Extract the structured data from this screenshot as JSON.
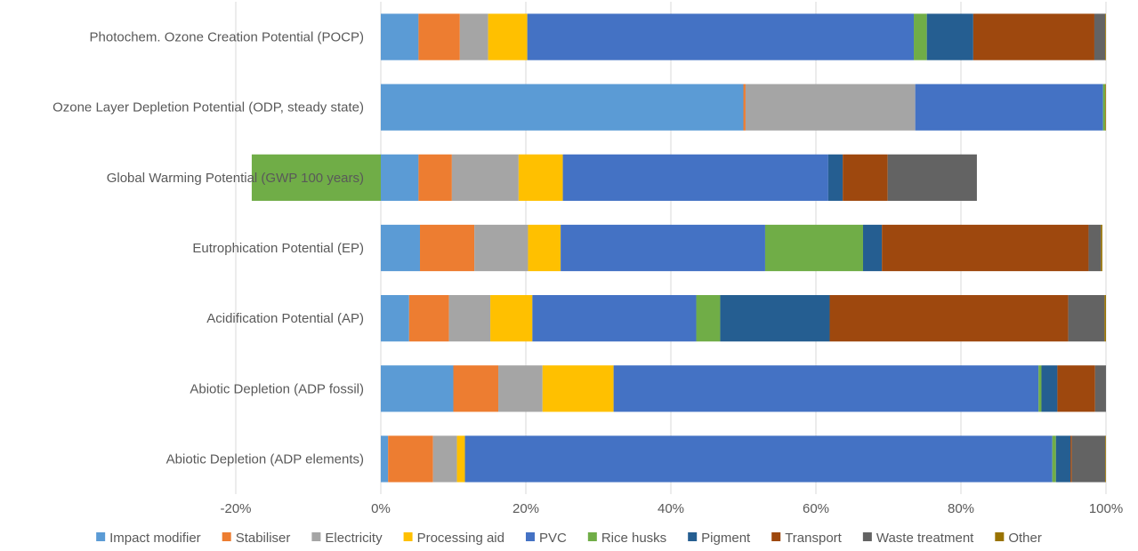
{
  "chart_data": {
    "type": "bar",
    "orientation": "horizontal",
    "stacked": true,
    "categories": [
      "Photochem. Ozone Creation Potential (POCP)",
      "Ozone Layer Depletion Potential (ODP, steady state)",
      "Global Warming Potential (GWP 100 years)",
      "Eutrophication Potential (EP)",
      "Acidification Potential (AP)",
      "Abiotic Depletion (ADP fossil)",
      "Abiotic Depletion (ADP elements)"
    ],
    "series": [
      {
        "name": "Impact modifier",
        "color": "#5B9BD5",
        "values": [
          5.2,
          50.0,
          5.2,
          5.4,
          3.9,
          10.0,
          1.0
        ]
      },
      {
        "name": "Stabiliser",
        "color": "#ED7D31",
        "values": [
          5.7,
          0.3,
          4.6,
          7.5,
          5.5,
          6.2,
          6.2
        ]
      },
      {
        "name": "Electricity",
        "color": "#A5A5A5",
        "values": [
          3.9,
          23.4,
          9.2,
          7.4,
          5.7,
          6.1,
          3.3
        ]
      },
      {
        "name": "Processing aid",
        "color": "#FFC000",
        "values": [
          5.4,
          0.0,
          6.1,
          4.5,
          5.8,
          9.8,
          1.1
        ]
      },
      {
        "name": "PVC",
        "color": "#4472C4",
        "values": [
          53.3,
          25.9,
          36.6,
          28.2,
          22.6,
          58.6,
          81.0
        ]
      },
      {
        "name": "Rice husks",
        "color": "#70AD47",
        "values": [
          1.8,
          0.3,
          -17.8,
          13.5,
          3.3,
          0.4,
          0.5
        ]
      },
      {
        "name": "Pigment",
        "color": "#255E91",
        "values": [
          6.4,
          0.0,
          2.0,
          2.6,
          15.1,
          2.2,
          2.0
        ]
      },
      {
        "name": "Transport",
        "color": "#9E480E",
        "values": [
          16.7,
          0.0,
          6.2,
          28.5,
          32.9,
          5.2,
          0.2
        ]
      },
      {
        "name": "Waste treatment",
        "color": "#636363",
        "values": [
          1.5,
          0.0,
          12.3,
          1.7,
          5.0,
          1.5,
          4.6
        ]
      },
      {
        "name": "Other",
        "color": "#997300",
        "values": [
          0.1,
          0.1,
          0.0,
          0.2,
          0.2,
          0.0,
          0.1
        ]
      }
    ],
    "xlim": [
      -20,
      100
    ],
    "xticks": [
      -20,
      0,
      20,
      40,
      60,
      80,
      100
    ],
    "tick_labels": [
      "-20%",
      "0%",
      "20%",
      "40%",
      "60%",
      "80%",
      "100%"
    ],
    "grid": true,
    "legend_position": "bottom"
  }
}
